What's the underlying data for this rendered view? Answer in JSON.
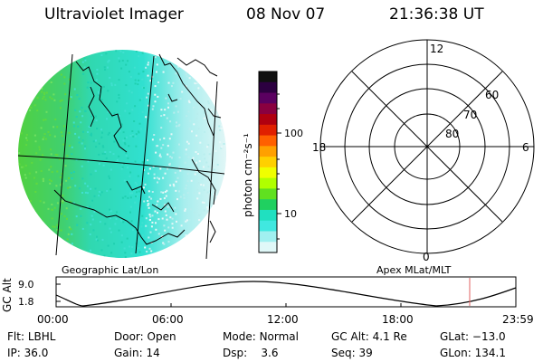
{
  "header": {
    "title": "Ultraviolet Imager",
    "date": "08 Nov 07",
    "time": "21:36:38 UT"
  },
  "image_panel": {
    "label": "Geographic Lat/Lon"
  },
  "colorbar": {
    "unit_label": "photon cm⁻²s⁻¹",
    "tick_labels": [
      "100",
      "10"
    ],
    "colors": [
      "#101010",
      "#2c0040",
      "#5a0060",
      "#8a0040",
      "#b00010",
      "#e02000",
      "#ff6000",
      "#ffa000",
      "#ffd000",
      "#f0ff00",
      "#b0ff00",
      "#60e020",
      "#20d060",
      "#20e0c0",
      "#40e8e0",
      "#a0f0f0",
      "#e0f8f8"
    ]
  },
  "polar_plot": {
    "label": "Apex MLat/MLT",
    "mlt_labels": {
      "top": "12",
      "bottom": "0",
      "left": "18",
      "right": "6"
    },
    "mlat_labels": [
      "60",
      "70",
      "80"
    ]
  },
  "altitude_plot": {
    "y_title": "GC Alt",
    "y_ticks": [
      "9.0",
      "1.8"
    ],
    "x_ticks": [
      "00:00",
      "06:00",
      "12:00",
      "18:00",
      "23:59"
    ],
    "marker_color": "#e06060"
  },
  "status": {
    "row1": [
      {
        "label": "Flt:",
        "value": "LBHL"
      },
      {
        "label": "Door:",
        "value": "Open"
      },
      {
        "label": "Mode:",
        "value": "Normal"
      },
      {
        "label": "GC Alt:",
        "value": "4.1 Re"
      },
      {
        "label": "GLat:",
        "value": "−13.0"
      }
    ],
    "row2": [
      {
        "label": "IP:",
        "value": "36.0"
      },
      {
        "label": "Gain:",
        "value": "14"
      },
      {
        "label": "Dsp:",
        "value": "3.6"
      },
      {
        "label": "Seq:",
        "value": "39"
      },
      {
        "label": "GLon:",
        "value": "134.1"
      }
    ]
  }
}
